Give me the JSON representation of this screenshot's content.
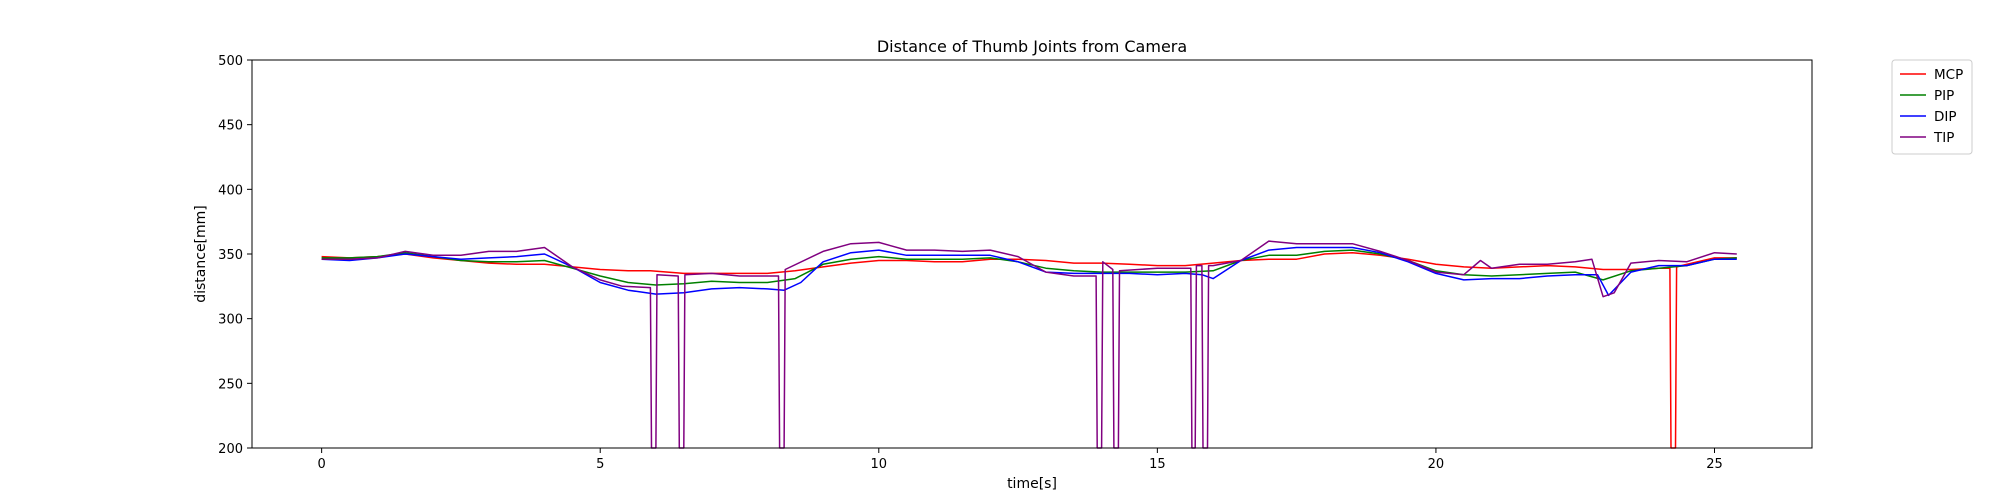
{
  "chart_data": {
    "type": "line",
    "title": "Distance of Thumb Joints from Camera",
    "xlabel": "time[s]",
    "ylabel": "distance[mm]",
    "xlim": [
      -1.25,
      26.75
    ],
    "ylim": [
      200,
      500
    ],
    "xticks": [
      "0",
      "5",
      "10",
      "15",
      "20",
      "25"
    ],
    "yticks": [
      "200",
      "250",
      "300",
      "350",
      "400",
      "450",
      "500"
    ],
    "grid": false,
    "legend_position": "outside-top-right",
    "series": [
      {
        "name": "MCP",
        "color": "#ff0000",
        "points": [
          [
            0,
            348
          ],
          [
            0.5,
            347
          ],
          [
            1,
            348
          ],
          [
            1.5,
            350
          ],
          [
            2,
            347
          ],
          [
            2.5,
            345
          ],
          [
            3,
            343
          ],
          [
            3.5,
            342
          ],
          [
            4,
            342
          ],
          [
            4.5,
            340
          ],
          [
            5,
            338
          ],
          [
            5.5,
            337
          ],
          [
            5.9,
            337
          ],
          [
            6.5,
            335
          ],
          [
            7,
            335
          ],
          [
            7.5,
            335
          ],
          [
            8,
            335
          ],
          [
            8.5,
            337
          ],
          [
            9,
            340
          ],
          [
            9.5,
            343
          ],
          [
            10,
            345
          ],
          [
            10.5,
            345
          ],
          [
            11,
            344
          ],
          [
            11.5,
            344
          ],
          [
            12,
            346
          ],
          [
            12.5,
            346
          ],
          [
            13,
            345
          ],
          [
            13.5,
            343
          ],
          [
            14,
            343
          ],
          [
            14.5,
            342
          ],
          [
            15,
            341
          ],
          [
            15.5,
            341
          ],
          [
            16,
            343
          ],
          [
            16.5,
            345
          ],
          [
            17,
            346
          ],
          [
            17.5,
            346
          ],
          [
            18,
            350
          ],
          [
            18.5,
            351
          ],
          [
            19,
            349
          ],
          [
            19.5,
            346
          ],
          [
            20,
            342
          ],
          [
            20.5,
            340
          ],
          [
            21,
            339
          ],
          [
            21.5,
            340
          ],
          [
            22,
            341
          ],
          [
            22.5,
            340
          ],
          [
            23,
            338
          ],
          [
            23.5,
            338
          ],
          [
            24,
            339
          ],
          [
            24.2,
            339
          ],
          [
            24.22,
            200
          ],
          [
            24.3,
            200
          ],
          [
            24.32,
            340
          ],
          [
            24.5,
            342
          ],
          [
            25,
            347
          ],
          [
            25.4,
            347
          ]
        ]
      },
      {
        "name": "PIP",
        "color": "#008000",
        "points": [
          [
            0,
            347
          ],
          [
            0.5,
            347
          ],
          [
            1,
            348
          ],
          [
            1.5,
            351
          ],
          [
            2,
            348
          ],
          [
            2.5,
            345
          ],
          [
            3,
            344
          ],
          [
            3.5,
            344
          ],
          [
            4,
            345
          ],
          [
            4.5,
            339
          ],
          [
            5,
            333
          ],
          [
            5.5,
            328
          ],
          [
            6,
            326
          ],
          [
            6.5,
            327
          ],
          [
            7,
            329
          ],
          [
            7.5,
            328
          ],
          [
            8,
            328
          ],
          [
            8.5,
            331
          ],
          [
            9,
            342
          ],
          [
            9.5,
            346
          ],
          [
            10,
            348
          ],
          [
            10.5,
            346
          ],
          [
            11,
            346
          ],
          [
            11.5,
            346
          ],
          [
            12,
            347
          ],
          [
            12.5,
            344
          ],
          [
            13,
            339
          ],
          [
            13.5,
            337
          ],
          [
            14,
            336
          ],
          [
            14.5,
            336
          ],
          [
            15,
            336
          ],
          [
            15.5,
            336
          ],
          [
            16,
            337
          ],
          [
            16.5,
            345
          ],
          [
            17,
            349
          ],
          [
            17.5,
            349
          ],
          [
            18,
            352
          ],
          [
            18.5,
            353
          ],
          [
            19,
            350
          ],
          [
            19.5,
            345
          ],
          [
            20,
            337
          ],
          [
            20.5,
            334
          ],
          [
            21,
            333
          ],
          [
            21.5,
            334
          ],
          [
            22,
            335
          ],
          [
            22.5,
            336
          ],
          [
            23,
            330
          ],
          [
            23.5,
            337
          ],
          [
            24,
            339
          ],
          [
            24.5,
            341
          ],
          [
            25,
            346
          ],
          [
            25.4,
            347
          ]
        ]
      },
      {
        "name": "DIP",
        "color": "#0000ff",
        "points": [
          [
            0,
            346
          ],
          [
            0.5,
            345
          ],
          [
            1,
            347
          ],
          [
            1.5,
            350
          ],
          [
            2,
            348
          ],
          [
            2.5,
            346
          ],
          [
            3,
            347
          ],
          [
            3.5,
            348
          ],
          [
            4,
            350
          ],
          [
            4.5,
            340
          ],
          [
            5,
            328
          ],
          [
            5.5,
            322
          ],
          [
            6,
            319
          ],
          [
            6.5,
            320
          ],
          [
            7,
            323
          ],
          [
            7.5,
            324
          ],
          [
            8,
            323
          ],
          [
            8.3,
            322
          ],
          [
            8.6,
            328
          ],
          [
            9,
            344
          ],
          [
            9.5,
            351
          ],
          [
            10,
            353
          ],
          [
            10.5,
            349
          ],
          [
            11,
            349
          ],
          [
            11.5,
            349
          ],
          [
            12,
            349
          ],
          [
            12.5,
            344
          ],
          [
            13,
            336
          ],
          [
            13.5,
            335
          ],
          [
            14,
            335
          ],
          [
            14.5,
            335
          ],
          [
            15,
            334
          ],
          [
            15.5,
            335
          ],
          [
            15.8,
            334
          ],
          [
            16,
            331
          ],
          [
            16.5,
            345
          ],
          [
            17,
            353
          ],
          [
            17.5,
            355
          ],
          [
            18,
            355
          ],
          [
            18.5,
            355
          ],
          [
            19,
            351
          ],
          [
            19.5,
            344
          ],
          [
            20,
            335
          ],
          [
            20.5,
            330
          ],
          [
            21,
            331
          ],
          [
            21.5,
            331
          ],
          [
            22,
            333
          ],
          [
            22.5,
            334
          ],
          [
            22.9,
            334
          ],
          [
            23.1,
            318
          ],
          [
            23.5,
            336
          ],
          [
            24,
            341
          ],
          [
            24.5,
            341
          ],
          [
            25,
            346
          ],
          [
            25.4,
            346
          ]
        ]
      },
      {
        "name": "TIP",
        "color": "#800080",
        "points": [
          [
            0,
            346
          ],
          [
            0.5,
            346
          ],
          [
            1,
            347
          ],
          [
            1.5,
            352
          ],
          [
            2,
            349
          ],
          [
            2.5,
            349
          ],
          [
            3,
            352
          ],
          [
            3.5,
            352
          ],
          [
            4,
            355
          ],
          [
            4.5,
            340
          ],
          [
            5,
            330
          ],
          [
            5.4,
            325
          ],
          [
            5.9,
            324
          ],
          [
            5.92,
            200
          ],
          [
            6.0,
            200
          ],
          [
            6.02,
            334
          ],
          [
            6.4,
            333
          ],
          [
            6.42,
            200
          ],
          [
            6.5,
            200
          ],
          [
            6.52,
            334
          ],
          [
            7,
            335
          ],
          [
            7.5,
            333
          ],
          [
            8.2,
            333
          ],
          [
            8.22,
            200
          ],
          [
            8.3,
            200
          ],
          [
            8.32,
            338
          ],
          [
            9,
            352
          ],
          [
            9.5,
            358
          ],
          [
            10,
            359
          ],
          [
            10.5,
            353
          ],
          [
            11,
            353
          ],
          [
            11.5,
            352
          ],
          [
            12,
            353
          ],
          [
            12.5,
            348
          ],
          [
            13,
            336
          ],
          [
            13.5,
            333
          ],
          [
            13.9,
            333
          ],
          [
            13.92,
            200
          ],
          [
            14.0,
            200
          ],
          [
            14.02,
            344
          ],
          [
            14.2,
            338
          ],
          [
            14.22,
            200
          ],
          [
            14.3,
            200
          ],
          [
            14.32,
            337
          ],
          [
            15,
            339
          ],
          [
            15.5,
            339
          ],
          [
            15.6,
            339
          ],
          [
            15.62,
            200
          ],
          [
            15.68,
            200
          ],
          [
            15.7,
            341
          ],
          [
            15.8,
            341
          ],
          [
            15.82,
            200
          ],
          [
            15.9,
            200
          ],
          [
            15.92,
            341
          ],
          [
            16,
            341
          ],
          [
            16.5,
            345
          ],
          [
            17,
            360
          ],
          [
            17.5,
            358
          ],
          [
            18,
            358
          ],
          [
            18.5,
            358
          ],
          [
            19,
            352
          ],
          [
            19.5,
            345
          ],
          [
            20,
            336
          ],
          [
            20.5,
            334
          ],
          [
            20.8,
            345
          ],
          [
            21,
            339
          ],
          [
            21.5,
            342
          ],
          [
            22,
            342
          ],
          [
            22.5,
            344
          ],
          [
            22.8,
            346
          ],
          [
            23,
            317
          ],
          [
            23.2,
            320
          ],
          [
            23.5,
            343
          ],
          [
            24,
            345
          ],
          [
            24.5,
            344
          ],
          [
            25,
            351
          ],
          [
            25.4,
            350
          ]
        ]
      }
    ]
  }
}
